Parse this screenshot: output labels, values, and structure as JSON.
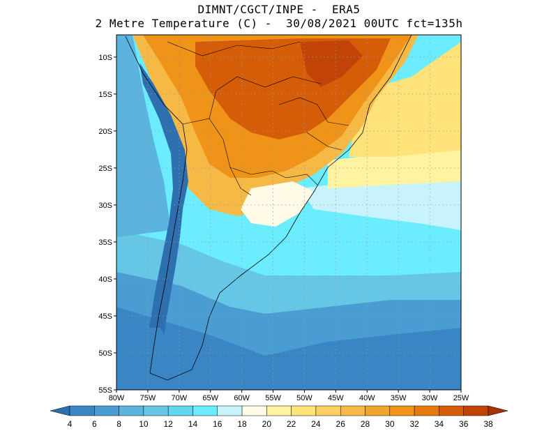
{
  "title_line1": "DIMNT/CGCT/INPE -  ERA5",
  "title_line2": "2 Metre Temperature (C) -  30/08/2021 00UTC fct=135h",
  "map": {
    "lat_ticks": [
      "10S",
      "15S",
      "20S",
      "25S",
      "30S",
      "35S",
      "40S",
      "45S",
      "50S",
      "55S"
    ],
    "lon_ticks": [
      "80W",
      "75W",
      "70W",
      "65W",
      "60W",
      "55W",
      "50W",
      "45W",
      "40W",
      "35W",
      "30W",
      "25W"
    ],
    "lat_values": [
      -10,
      -15,
      -20,
      -25,
      -30,
      -35,
      -40,
      -45,
      -50,
      -55
    ],
    "lon_values": [
      -80,
      -75,
      -70,
      -65,
      -60,
      -55,
      -50,
      -45,
      -40,
      -35,
      -30,
      -25
    ],
    "extent": {
      "lon_min": -80,
      "lon_max": -25,
      "lat_min": -55,
      "lat_max": -7
    },
    "gridlines": true
  },
  "colorbar": {
    "labels": [
      "4",
      "6",
      "8",
      "10",
      "12",
      "14",
      "16",
      "18",
      "20",
      "22",
      "24",
      "26",
      "28",
      "30",
      "32",
      "34",
      "36",
      "38"
    ],
    "colors": [
      "#2e6fb0",
      "#3a86c4",
      "#4a9dd2",
      "#5cb3dd",
      "#66c6e6",
      "#60d6ef",
      "#6cecff",
      "#c8f3fc",
      "#fffbe6",
      "#fff3a2",
      "#ffe27a",
      "#fcd063",
      "#f6b945",
      "#eea62c",
      "#ef9418",
      "#e57a0e",
      "#d65d08",
      "#c14306",
      "#a83104"
    ]
  }
}
